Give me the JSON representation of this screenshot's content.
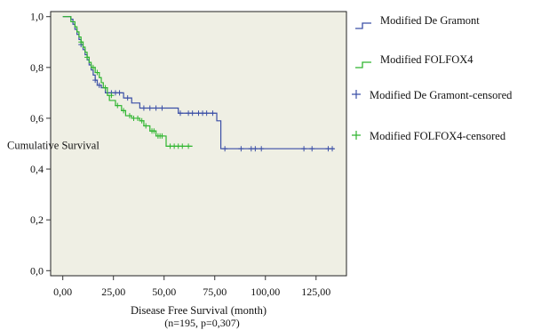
{
  "colors": {
    "plot_background": "#efefe4",
    "series_blue": "#3b4fa6",
    "series_green": "#2fb52f",
    "axis": "#333333"
  },
  "chart_data": {
    "type": "line",
    "chart_style": "kaplan-meier step",
    "ylabel": "Cumulative Survival",
    "xlabel": "Disease Free Survival (month)",
    "xlabel_line2": "(n=195, p=0,307)",
    "xlim": [
      -6,
      140
    ],
    "ylim": [
      -0.02,
      1.02
    ],
    "xticks": [
      0,
      25,
      50,
      75,
      100,
      125
    ],
    "xtick_labels": [
      "0,00",
      "25,00",
      "50,00",
      "75,00",
      "100,00",
      "125,00"
    ],
    "yticks": [
      0.0,
      0.2,
      0.4,
      0.6,
      0.8,
      1.0
    ],
    "ytick_labels": [
      "0,0",
      "0,2",
      "0,4",
      "0,6",
      "0,8",
      "1,0"
    ],
    "grid": false,
    "legend_position": "right",
    "legend": [
      {
        "label": "Modified De Gramont",
        "type": "step",
        "color": "#3b4fa6"
      },
      {
        "label": "Modified FOLFOX4",
        "type": "step",
        "color": "#2fb52f"
      },
      {
        "label": "Modified De Gramont-censored",
        "type": "censor",
        "color": "#3b4fa6"
      },
      {
        "label": "Modified FOLFOX4-censored",
        "type": "censor",
        "color": "#2fb52f"
      }
    ],
    "series": [
      {
        "name": "Modified De Gramont",
        "color": "#3b4fa6",
        "steps": [
          [
            0,
            1.0
          ],
          [
            4,
            0.99
          ],
          [
            5,
            0.97
          ],
          [
            6,
            0.95
          ],
          [
            7,
            0.93
          ],
          [
            8,
            0.91
          ],
          [
            9,
            0.89
          ],
          [
            10,
            0.87
          ],
          [
            11,
            0.85
          ],
          [
            12,
            0.83
          ],
          [
            13,
            0.81
          ],
          [
            14,
            0.79
          ],
          [
            15,
            0.77
          ],
          [
            16,
            0.75
          ],
          [
            17,
            0.73
          ],
          [
            19,
            0.72
          ],
          [
            21,
            0.7
          ],
          [
            30,
            0.68
          ],
          [
            34,
            0.66
          ],
          [
            38,
            0.64
          ],
          [
            57,
            0.62
          ],
          [
            76,
            0.59
          ],
          [
            78,
            0.48
          ],
          [
            134,
            0.48
          ]
        ],
        "censored": [
          [
            9,
            0.89
          ],
          [
            16,
            0.75
          ],
          [
            18,
            0.73
          ],
          [
            24,
            0.7
          ],
          [
            26,
            0.7
          ],
          [
            28,
            0.7
          ],
          [
            32,
            0.68
          ],
          [
            40,
            0.64
          ],
          [
            43,
            0.64
          ],
          [
            46,
            0.64
          ],
          [
            49,
            0.64
          ],
          [
            58,
            0.62
          ],
          [
            62,
            0.62
          ],
          [
            64,
            0.62
          ],
          [
            67,
            0.62
          ],
          [
            69,
            0.62
          ],
          [
            71,
            0.62
          ],
          [
            74,
            0.62
          ],
          [
            80,
            0.48
          ],
          [
            88,
            0.48
          ],
          [
            93,
            0.48
          ],
          [
            95,
            0.48
          ],
          [
            98,
            0.48
          ],
          [
            119,
            0.48
          ],
          [
            123,
            0.48
          ],
          [
            131,
            0.48
          ],
          [
            133,
            0.48
          ]
        ]
      },
      {
        "name": "Modified FOLFOX4",
        "color": "#2fb52f",
        "steps": [
          [
            0,
            1.0
          ],
          [
            4,
            0.98
          ],
          [
            6,
            0.96
          ],
          [
            7,
            0.94
          ],
          [
            8,
            0.92
          ],
          [
            9,
            0.9
          ],
          [
            10,
            0.88
          ],
          [
            11,
            0.86
          ],
          [
            12,
            0.84
          ],
          [
            13,
            0.82
          ],
          [
            14,
            0.8
          ],
          [
            16,
            0.78
          ],
          [
            18,
            0.76
          ],
          [
            19,
            0.74
          ],
          [
            20,
            0.72
          ],
          [
            22,
            0.69
          ],
          [
            23,
            0.67
          ],
          [
            26,
            0.65
          ],
          [
            29,
            0.63
          ],
          [
            31,
            0.61
          ],
          [
            34,
            0.6
          ],
          [
            38,
            0.59
          ],
          [
            40,
            0.57
          ],
          [
            43,
            0.55
          ],
          [
            46,
            0.53
          ],
          [
            51,
            0.49
          ],
          [
            64,
            0.49
          ]
        ],
        "censored": [
          [
            9,
            0.9
          ],
          [
            12,
            0.84
          ],
          [
            15,
            0.8
          ],
          [
            17,
            0.78
          ],
          [
            21,
            0.72
          ],
          [
            24,
            0.69
          ],
          [
            27,
            0.65
          ],
          [
            30,
            0.63
          ],
          [
            33,
            0.61
          ],
          [
            35,
            0.6
          ],
          [
            37,
            0.6
          ],
          [
            39,
            0.59
          ],
          [
            41,
            0.57
          ],
          [
            44,
            0.55
          ],
          [
            45,
            0.55
          ],
          [
            47,
            0.53
          ],
          [
            48,
            0.53
          ],
          [
            49,
            0.53
          ],
          [
            53,
            0.49
          ],
          [
            55,
            0.49
          ],
          [
            57,
            0.49
          ],
          [
            59,
            0.49
          ],
          [
            62,
            0.49
          ]
        ]
      }
    ]
  }
}
